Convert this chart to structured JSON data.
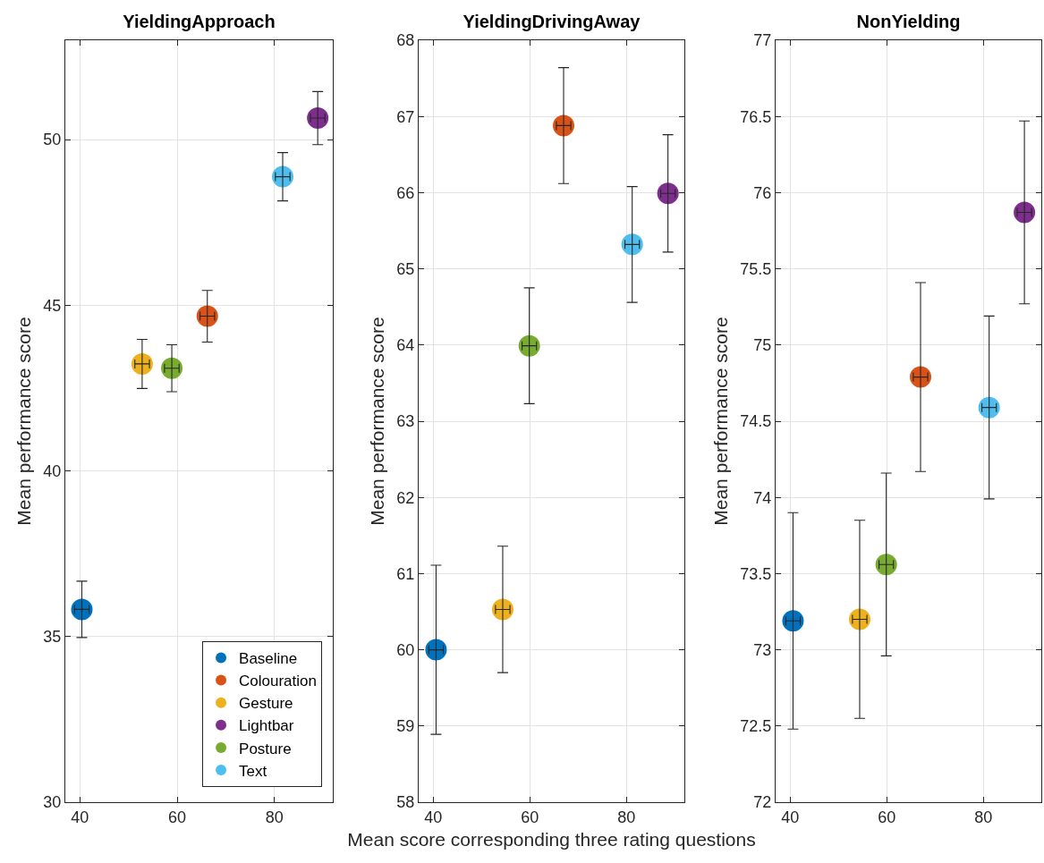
{
  "chart_data": [
    {
      "type": "scatter",
      "title": "YieldingApproach",
      "ylabel": "Mean performance score",
      "xlim": [
        37,
        92
      ],
      "xticks": [
        40,
        60,
        80
      ],
      "ylim": [
        30,
        53
      ],
      "yticks": [
        30,
        35,
        40,
        45,
        50
      ],
      "grid": true,
      "legend": "bottom right",
      "marker": "circle",
      "series": [
        {
          "name": "Baseline",
          "color": "#0072bd",
          "x": [
            40.4
          ],
          "values": [
            35.82
          ],
          "errors": [
            0.85
          ],
          "xerrors": [
            1.5
          ]
        },
        {
          "name": "Colouration",
          "color": "#d95319",
          "x": [
            66.2
          ],
          "values": [
            44.67
          ],
          "errors": [
            0.78
          ],
          "xerrors": [
            1.5
          ]
        },
        {
          "name": "Gesture",
          "color": "#edb120",
          "x": [
            52.8
          ],
          "values": [
            43.23
          ],
          "errors": [
            0.74
          ],
          "xerrors": [
            1.5
          ]
        },
        {
          "name": "Lightbar",
          "color": "#7e2f8e",
          "x": [
            88.9
          ],
          "values": [
            50.65
          ],
          "errors": [
            0.8
          ],
          "xerrors": [
            1.5
          ]
        },
        {
          "name": "Posture",
          "color": "#77ac30",
          "x": [
            58.9
          ],
          "values": [
            43.1
          ],
          "errors": [
            0.71
          ],
          "xerrors": [
            1.5
          ]
        },
        {
          "name": "Text",
          "color": "#4dbeee",
          "x": [
            81.7
          ],
          "values": [
            48.88
          ],
          "errors": [
            0.73
          ],
          "xerrors": [
            1.5
          ]
        }
      ]
    },
    {
      "type": "scatter",
      "title": "YieldingDrivingAway",
      "xlabel": "Mean score corresponding three rating questions",
      "ylabel": "Mean performance score",
      "xlim": [
        37,
        92
      ],
      "xticks": [
        40,
        60,
        80
      ],
      "ylim": [
        58,
        68
      ],
      "yticks": [
        58,
        59,
        60,
        61,
        62,
        63,
        64,
        65,
        66,
        67,
        68
      ],
      "grid": true,
      "marker": "circle",
      "series": [
        {
          "color": "#0072bd",
          "x": [
            40.6
          ],
          "values": [
            60.0
          ],
          "errors": [
            1.11
          ],
          "xerrors": [
            1.5
          ]
        },
        {
          "color": "#d95319",
          "x": [
            67.0
          ],
          "values": [
            66.88
          ],
          "errors": [
            0.76
          ],
          "xerrors": [
            1.5
          ]
        },
        {
          "color": "#edb120",
          "x": [
            54.4
          ],
          "values": [
            60.53
          ],
          "errors": [
            0.83
          ],
          "xerrors": [
            1.5
          ]
        },
        {
          "color": "#7e2f8e",
          "x": [
            88.6
          ],
          "values": [
            65.99
          ],
          "errors": [
            0.77
          ],
          "xerrors": [
            1.5
          ]
        },
        {
          "color": "#77ac30",
          "x": [
            59.9
          ],
          "values": [
            63.99
          ],
          "errors": [
            0.76
          ],
          "xerrors": [
            1.5
          ]
        },
        {
          "color": "#4dbeee",
          "x": [
            81.2
          ],
          "values": [
            65.32
          ],
          "errors": [
            0.76
          ],
          "xerrors": [
            1.5
          ]
        }
      ]
    },
    {
      "type": "scatter",
      "title": "NonYielding",
      "ylabel": "Mean performance score",
      "xlim": [
        37,
        92
      ],
      "xticks": [
        40,
        60,
        80
      ],
      "ylim": [
        72,
        77
      ],
      "yticks": [
        72,
        72.5,
        73,
        73.5,
        74,
        74.5,
        75,
        75.5,
        76,
        76.5,
        77
      ],
      "grid": true,
      "marker": "circle",
      "series": [
        {
          "color": "#0072bd",
          "x": [
            40.6
          ],
          "values": [
            73.19
          ],
          "errors": [
            0.71
          ],
          "xerrors": [
            1.5
          ]
        },
        {
          "color": "#d95319",
          "x": [
            67.0
          ],
          "values": [
            74.79
          ],
          "errors": [
            0.62
          ],
          "xerrors": [
            1.5
          ]
        },
        {
          "color": "#edb120",
          "x": [
            54.4
          ],
          "values": [
            73.2
          ],
          "errors": [
            0.65
          ],
          "xerrors": [
            1.5
          ]
        },
        {
          "color": "#7e2f8e",
          "x": [
            88.5
          ],
          "values": [
            75.87
          ],
          "errors": [
            0.6
          ],
          "xerrors": [
            1.5
          ]
        },
        {
          "color": "#77ac30",
          "x": [
            59.9
          ],
          "values": [
            73.56
          ],
          "errors": [
            0.6
          ],
          "xerrors": [
            1.5
          ]
        },
        {
          "color": "#4dbeee",
          "x": [
            81.2
          ],
          "values": [
            74.59
          ],
          "errors": [
            0.6
          ],
          "xerrors": [
            1.5
          ]
        }
      ]
    }
  ]
}
